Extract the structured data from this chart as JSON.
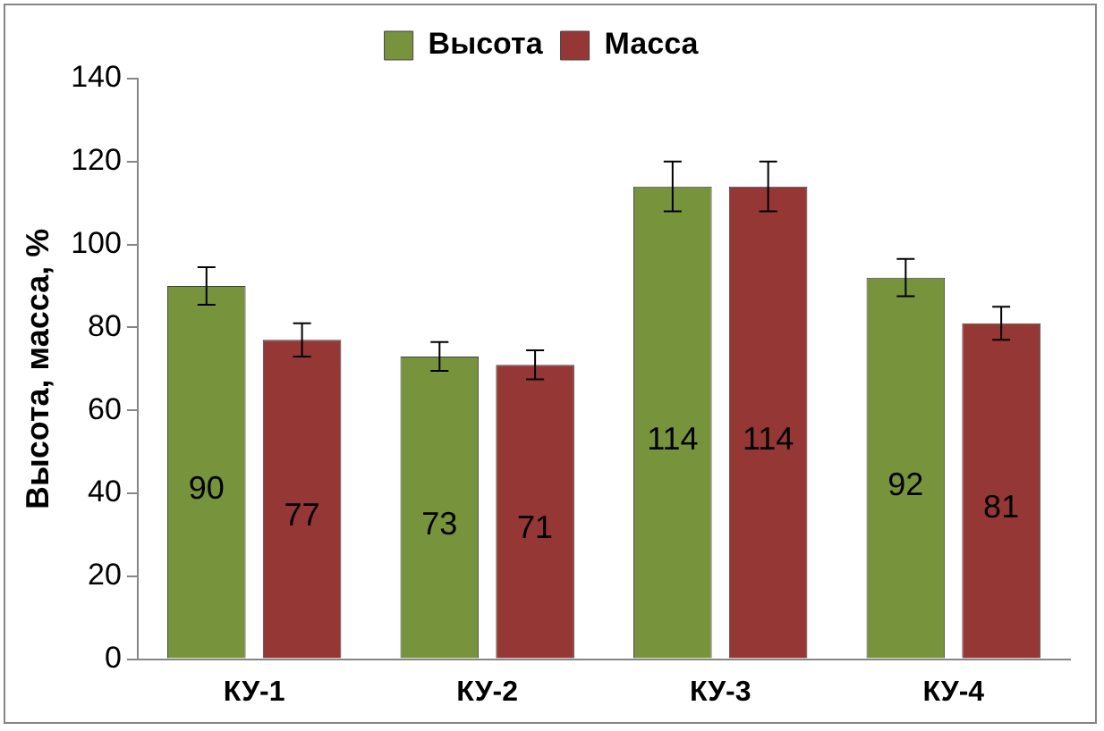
{
  "chart_data": {
    "type": "bar",
    "ylabel": "Высота, масса, %",
    "categories": [
      "КУ-1",
      "КУ-2",
      "КУ-3",
      "КУ-4"
    ],
    "series": [
      {
        "name": "Высота",
        "color": "#77933c",
        "values": [
          90,
          73,
          114,
          92
        ],
        "errors": [
          4.5,
          3.5,
          6,
          4.5
        ]
      },
      {
        "name": "Масса",
        "color": "#953735",
        "values": [
          77,
          71,
          114,
          81
        ],
        "errors": [
          4,
          3.5,
          6,
          4
        ]
      }
    ],
    "ylim": [
      0,
      140
    ],
    "yticks": [
      0,
      20,
      40,
      60,
      80,
      100,
      120,
      140
    ],
    "grid": false,
    "legend": "top",
    "data_labels": true
  }
}
